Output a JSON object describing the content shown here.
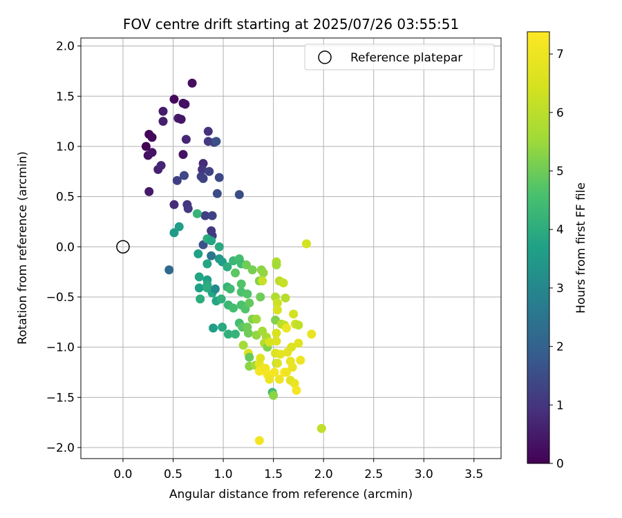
{
  "chart_data": {
    "type": "scatter",
    "title": "FOV centre drift starting at 2025/07/26 03:55:51",
    "xlabel": "Angular distance from reference (arcmin)",
    "ylabel": "Rotation from reference (arcmin)",
    "xlim": [
      -0.42,
      3.77
    ],
    "ylim": [
      -2.11,
      2.08
    ],
    "xticks": [
      0.0,
      0.5,
      1.0,
      1.5,
      2.0,
      2.5,
      3.0,
      3.5
    ],
    "xtick_labels": [
      "0.0",
      "0.5",
      "1.0",
      "1.5",
      "2.0",
      "2.5",
      "3.0",
      "3.5"
    ],
    "yticks": [
      2.0,
      1.5,
      1.0,
      0.5,
      0.0,
      -0.5,
      -1.0,
      -1.5,
      -2.0
    ],
    "ytick_labels": [
      "2.0",
      "1.5",
      "1.0",
      "0.5",
      "0.0",
      "−0.5",
      "−1.0",
      "−1.5",
      "−2.0"
    ],
    "grid": true,
    "legend": {
      "placement": "top-right",
      "entries": [
        {
          "label": "Reference platepar",
          "marker": "open-circle"
        }
      ]
    },
    "reference_point": {
      "x": 0.0,
      "y": 0.0
    },
    "colorbar": {
      "label": "Hours from first FF file",
      "colormap": "viridis",
      "range": [
        0,
        7.38
      ],
      "ticks": [
        0,
        1,
        2,
        3,
        4,
        5,
        6,
        7
      ],
      "tick_labels": [
        "0",
        "1",
        "2",
        "3",
        "4",
        "5",
        "6",
        "7"
      ]
    },
    "points": [
      {
        "x": 0.23,
        "y": 1.0,
        "h": 0.0
      },
      {
        "x": 0.26,
        "y": 1.12,
        "h": 0.1
      },
      {
        "x": 0.29,
        "y": 1.09,
        "h": 0.15
      },
      {
        "x": 0.25,
        "y": 0.91,
        "h": 0.3
      },
      {
        "x": 0.29,
        "y": 0.94,
        "h": 0.35
      },
      {
        "x": 0.35,
        "y": 0.77,
        "h": 0.6
      },
      {
        "x": 0.38,
        "y": 0.81,
        "h": 0.7
      },
      {
        "x": 0.26,
        "y": 0.55,
        "h": 0.45
      },
      {
        "x": 0.4,
        "y": 1.35,
        "h": 0.5
      },
      {
        "x": 0.4,
        "y": 1.25,
        "h": 0.55
      },
      {
        "x": 0.51,
        "y": 1.47,
        "h": 0.15
      },
      {
        "x": 0.6,
        "y": 1.43,
        "h": 0.2
      },
      {
        "x": 0.62,
        "y": 1.42,
        "h": 0.3
      },
      {
        "x": 0.69,
        "y": 1.63,
        "h": 0.25
      },
      {
        "x": 0.55,
        "y": 1.28,
        "h": 0.5
      },
      {
        "x": 0.58,
        "y": 1.27,
        "h": 0.4
      },
      {
        "x": 0.6,
        "y": 0.92,
        "h": 0.3
      },
      {
        "x": 0.63,
        "y": 1.07,
        "h": 0.7
      },
      {
        "x": 0.85,
        "y": 1.15,
        "h": 0.9
      },
      {
        "x": 0.85,
        "y": 1.05,
        "h": 1.1
      },
      {
        "x": 0.91,
        "y": 1.04,
        "h": 1.2
      },
      {
        "x": 0.93,
        "y": 1.05,
        "h": 1.6
      },
      {
        "x": 0.8,
        "y": 0.83,
        "h": 0.8
      },
      {
        "x": 0.79,
        "y": 0.77,
        "h": 1.0
      },
      {
        "x": 0.86,
        "y": 0.75,
        "h": 1.3
      },
      {
        "x": 0.78,
        "y": 0.7,
        "h": 1.2
      },
      {
        "x": 0.8,
        "y": 0.68,
        "h": 1.3
      },
      {
        "x": 0.96,
        "y": 0.69,
        "h": 1.4
      },
      {
        "x": 0.94,
        "y": 0.53,
        "h": 1.5
      },
      {
        "x": 1.16,
        "y": 0.52,
        "h": 1.5
      },
      {
        "x": 0.54,
        "y": 0.66,
        "h": 1.2
      },
      {
        "x": 0.61,
        "y": 0.71,
        "h": 1.4
      },
      {
        "x": 0.51,
        "y": 0.42,
        "h": 0.8
      },
      {
        "x": 0.64,
        "y": 0.42,
        "h": 1.0
      },
      {
        "x": 0.65,
        "y": 0.38,
        "h": 1.1
      },
      {
        "x": 0.82,
        "y": 0.31,
        "h": 1.2
      },
      {
        "x": 0.89,
        "y": 0.31,
        "h": 1.3
      },
      {
        "x": 0.88,
        "y": 0.16,
        "h": 1.0
      },
      {
        "x": 0.89,
        "y": 0.11,
        "h": 1.1
      },
      {
        "x": 0.8,
        "y": 0.02,
        "h": 1.6
      },
      {
        "x": 0.46,
        "y": -0.23,
        "h": 2.2
      },
      {
        "x": 0.51,
        "y": 0.14,
        "h": 3.5
      },
      {
        "x": 0.56,
        "y": 0.2,
        "h": 3.6
      },
      {
        "x": 0.74,
        "y": 0.33,
        "h": 4.2
      },
      {
        "x": 0.84,
        "y": 0.08,
        "h": 4.0
      },
      {
        "x": 0.88,
        "y": 0.06,
        "h": 3.8
      },
      {
        "x": 0.96,
        "y": 0.0,
        "h": 3.9
      },
      {
        "x": 0.75,
        "y": -0.07,
        "h": 3.7
      },
      {
        "x": 0.84,
        "y": -0.17,
        "h": 3.8
      },
      {
        "x": 0.88,
        "y": -0.09,
        "h": 2.5
      },
      {
        "x": 0.96,
        "y": -0.12,
        "h": 3.4
      },
      {
        "x": 0.99,
        "y": -0.15,
        "h": 3.6
      },
      {
        "x": 1.04,
        "y": -0.2,
        "h": 4.0
      },
      {
        "x": 1.1,
        "y": -0.14,
        "h": 4.3
      },
      {
        "x": 1.16,
        "y": -0.12,
        "h": 4.5
      },
      {
        "x": 1.18,
        "y": -0.17,
        "h": 4.4
      },
      {
        "x": 0.76,
        "y": -0.3,
        "h": 3.8
      },
      {
        "x": 0.84,
        "y": -0.33,
        "h": 3.6
      },
      {
        "x": 0.84,
        "y": -0.38,
        "h": 3.9
      },
      {
        "x": 0.76,
        "y": -0.41,
        "h": 3.7
      },
      {
        "x": 0.84,
        "y": -0.41,
        "h": 4.0
      },
      {
        "x": 0.89,
        "y": -0.46,
        "h": 3.8
      },
      {
        "x": 0.92,
        "y": -0.42,
        "h": 3.1
      },
      {
        "x": 0.77,
        "y": -0.52,
        "h": 4.0
      },
      {
        "x": 0.93,
        "y": -0.54,
        "h": 3.8
      },
      {
        "x": 0.98,
        "y": -0.52,
        "h": 4.1
      },
      {
        "x": 1.04,
        "y": -0.4,
        "h": 4.2
      },
      {
        "x": 1.07,
        "y": -0.42,
        "h": 4.4
      },
      {
        "x": 1.12,
        "y": -0.26,
        "h": 4.8
      },
      {
        "x": 1.18,
        "y": -0.37,
        "h": 4.7
      },
      {
        "x": 1.18,
        "y": -0.45,
        "h": 4.6
      },
      {
        "x": 1.24,
        "y": -0.47,
        "h": 4.7
      },
      {
        "x": 1.23,
        "y": -0.18,
        "h": 5.0
      },
      {
        "x": 1.29,
        "y": -0.23,
        "h": 5.1
      },
      {
        "x": 1.38,
        "y": -0.23,
        "h": 5.3
      },
      {
        "x": 1.36,
        "y": -0.34,
        "h": 5.2
      },
      {
        "x": 1.4,
        "y": -0.26,
        "h": 5.4
      },
      {
        "x": 1.39,
        "y": -0.34,
        "h": 6.2
      },
      {
        "x": 1.53,
        "y": -0.15,
        "h": 5.8
      },
      {
        "x": 1.53,
        "y": -0.18,
        "h": 5.6
      },
      {
        "x": 1.56,
        "y": -0.34,
        "h": 6.0
      },
      {
        "x": 1.6,
        "y": -0.36,
        "h": 6.2
      },
      {
        "x": 1.37,
        "y": -0.5,
        "h": 5.0
      },
      {
        "x": 1.52,
        "y": -0.5,
        "h": 5.8
      },
      {
        "x": 1.54,
        "y": -0.56,
        "h": 6.3
      },
      {
        "x": 1.54,
        "y": -0.63,
        "h": 6.5
      },
      {
        "x": 1.62,
        "y": -0.51,
        "h": 5.9
      },
      {
        "x": 1.83,
        "y": 0.03,
        "h": 6.4
      },
      {
        "x": 1.05,
        "y": -0.58,
        "h": 4.3
      },
      {
        "x": 1.1,
        "y": -0.61,
        "h": 4.5
      },
      {
        "x": 1.18,
        "y": -0.58,
        "h": 4.6
      },
      {
        "x": 1.22,
        "y": -0.62,
        "h": 4.7
      },
      {
        "x": 1.26,
        "y": -0.56,
        "h": 4.9
      },
      {
        "x": 0.9,
        "y": -0.81,
        "h": 3.6
      },
      {
        "x": 0.99,
        "y": -0.8,
        "h": 3.9
      },
      {
        "x": 1.05,
        "y": -0.87,
        "h": 4.1
      },
      {
        "x": 1.12,
        "y": -0.87,
        "h": 4.2
      },
      {
        "x": 1.16,
        "y": -0.76,
        "h": 4.5
      },
      {
        "x": 1.19,
        "y": -0.8,
        "h": 4.8
      },
      {
        "x": 1.24,
        "y": -0.8,
        "h": 5.0
      },
      {
        "x": 1.25,
        "y": -0.86,
        "h": 5.0
      },
      {
        "x": 1.29,
        "y": -0.72,
        "h": 5.2
      },
      {
        "x": 1.33,
        "y": -0.72,
        "h": 5.5
      },
      {
        "x": 1.33,
        "y": -0.88,
        "h": 5.4
      },
      {
        "x": 1.39,
        "y": -0.84,
        "h": 5.6
      },
      {
        "x": 1.43,
        "y": -0.9,
        "h": 5.7
      },
      {
        "x": 1.52,
        "y": -0.73,
        "h": 5.2
      },
      {
        "x": 1.58,
        "y": -0.77,
        "h": 5.9
      },
      {
        "x": 1.61,
        "y": -0.78,
        "h": 6.1
      },
      {
        "x": 1.63,
        "y": -0.81,
        "h": 7.0
      },
      {
        "x": 1.7,
        "y": -0.67,
        "h": 6.4
      },
      {
        "x": 1.72,
        "y": -0.77,
        "h": 6.3
      },
      {
        "x": 1.75,
        "y": -0.78,
        "h": 6.1
      },
      {
        "x": 1.2,
        "y": -0.98,
        "h": 5.6
      },
      {
        "x": 1.25,
        "y": -1.06,
        "h": 6.6
      },
      {
        "x": 1.26,
        "y": -1.1,
        "h": 4.9
      },
      {
        "x": 1.26,
        "y": -1.19,
        "h": 5.3
      },
      {
        "x": 1.32,
        "y": -1.18,
        "h": 5.6
      },
      {
        "x": 1.36,
        "y": -1.17,
        "h": 6.8
      },
      {
        "x": 1.37,
        "y": -1.11,
        "h": 6.7
      },
      {
        "x": 1.36,
        "y": -1.24,
        "h": 7.2
      },
      {
        "x": 1.41,
        "y": -0.96,
        "h": 5.9
      },
      {
        "x": 1.44,
        "y": -1.0,
        "h": 5.2
      },
      {
        "x": 1.46,
        "y": -0.95,
        "h": 6.5
      },
      {
        "x": 1.53,
        "y": -0.86,
        "h": 6.5
      },
      {
        "x": 1.53,
        "y": -0.94,
        "h": 6.6
      },
      {
        "x": 1.52,
        "y": -1.06,
        "h": 6.6
      },
      {
        "x": 1.53,
        "y": -1.16,
        "h": 5.8
      },
      {
        "x": 1.54,
        "y": -1.16,
        "h": 6.6
      },
      {
        "x": 1.57,
        "y": -1.07,
        "h": 6.8
      },
      {
        "x": 1.42,
        "y": -1.21,
        "h": 7.1
      },
      {
        "x": 1.44,
        "y": -1.27,
        "h": 7.2
      },
      {
        "x": 1.46,
        "y": -1.32,
        "h": 7.0
      },
      {
        "x": 1.51,
        "y": -1.25,
        "h": 7.2
      },
      {
        "x": 1.56,
        "y": -1.32,
        "h": 7.0
      },
      {
        "x": 1.61,
        "y": -1.25,
        "h": 7.3
      },
      {
        "x": 1.63,
        "y": -1.25,
        "h": 7.1
      },
      {
        "x": 1.64,
        "y": -1.05,
        "h": 6.8
      },
      {
        "x": 1.67,
        "y": -1.14,
        "h": 6.9
      },
      {
        "x": 1.68,
        "y": -1.0,
        "h": 6.6
      },
      {
        "x": 1.69,
        "y": -1.2,
        "h": 6.9
      },
      {
        "x": 1.67,
        "y": -1.33,
        "h": 6.7
      },
      {
        "x": 1.71,
        "y": -1.36,
        "h": 6.9
      },
      {
        "x": 1.73,
        "y": -1.43,
        "h": 7.2
      },
      {
        "x": 1.75,
        "y": -0.96,
        "h": 6.7
      },
      {
        "x": 1.77,
        "y": -1.13,
        "h": 7.0
      },
      {
        "x": 1.88,
        "y": -0.87,
        "h": 6.9
      },
      {
        "x": 1.49,
        "y": -1.45,
        "h": 4.4
      },
      {
        "x": 1.5,
        "y": -1.48,
        "h": 5.3
      },
      {
        "x": 1.36,
        "y": -1.93,
        "h": 7.1
      },
      {
        "x": 1.98,
        "y": -1.81,
        "h": 6.1
      }
    ]
  }
}
